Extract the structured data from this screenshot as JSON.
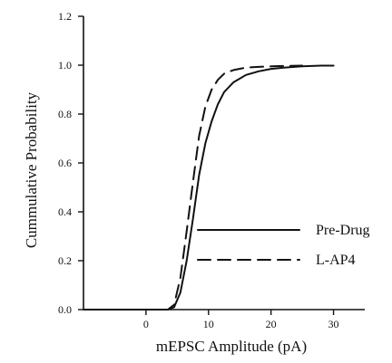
{
  "chart_data": {
    "type": "line",
    "title": "",
    "xlabel": "mEPSC Amplitude (pA)",
    "ylabel": "Cummulative Probability",
    "xlim": [
      -10,
      35
    ],
    "ylim": [
      0.0,
      1.2
    ],
    "x_ticks": [
      0,
      10,
      20,
      30
    ],
    "y_ticks": [
      0.0,
      0.2,
      0.4,
      0.6,
      0.8,
      1.0,
      1.2
    ],
    "y_tick_labels": [
      "0.0",
      "0.2",
      "0.4",
      "0.6",
      "0.8",
      "1.0",
      "1.2"
    ],
    "grid": false,
    "legend_position": "lower-right",
    "series": [
      {
        "name": "Pre-Drug",
        "style": "solid",
        "color": "#111111",
        "x": [
          -10,
          3.5,
          4.5,
          5.5,
          6.5,
          7.5,
          8.5,
          9.5,
          10.5,
          11.5,
          12.5,
          14,
          16,
          18,
          20,
          22,
          25,
          28,
          30
        ],
        "y": [
          0.0,
          0.0,
          0.01,
          0.07,
          0.2,
          0.37,
          0.55,
          0.68,
          0.77,
          0.84,
          0.89,
          0.93,
          0.96,
          0.975,
          0.985,
          0.99,
          0.995,
          0.998,
          0.998
        ]
      },
      {
        "name": "L-AP4",
        "style": "dashed",
        "color": "#111111",
        "x": [
          -10,
          3.5,
          4.5,
          5.5,
          6.5,
          7.5,
          8.5,
          9.5,
          10.5,
          11.5,
          12.5,
          14,
          16,
          18,
          20,
          22,
          25
        ],
        "y": [
          0.0,
          0.0,
          0.02,
          0.13,
          0.32,
          0.52,
          0.71,
          0.83,
          0.9,
          0.94,
          0.965,
          0.98,
          0.99,
          0.993,
          0.995,
          0.997,
          0.998
        ]
      }
    ]
  }
}
